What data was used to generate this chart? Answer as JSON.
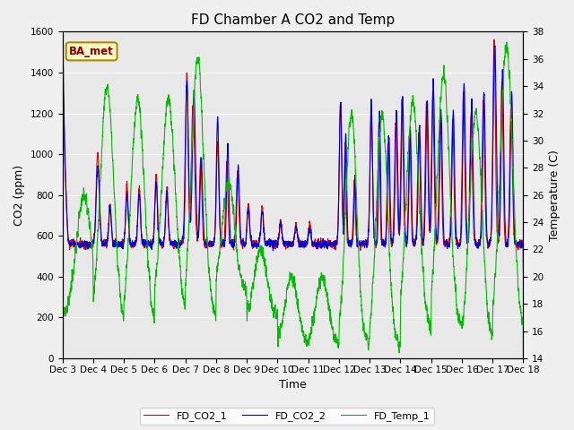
{
  "title": "FD Chamber A CO2 and Temp",
  "xlabel": "Time",
  "ylabel_left": "CO2 (ppm)",
  "ylabel_right": "Temperature (°C)",
  "ylabel_right_label": "Temperature (C)",
  "annotation_text": "BA_met",
  "legend_labels": [
    "FD_CO2_1",
    "FD_CO2_2",
    "FD_Temp_1"
  ],
  "co2_color1": "#dd0000",
  "co2_color2": "#0000dd",
  "temp_color": "#00bb00",
  "ylim_left": [
    0,
    1600
  ],
  "ylim_right": [
    14,
    38
  ],
  "yticks_left": [
    0,
    200,
    400,
    600,
    800,
    1000,
    1200,
    1400,
    1600
  ],
  "yticks_right": [
    14,
    16,
    18,
    20,
    22,
    24,
    26,
    28,
    30,
    32,
    34,
    36,
    38
  ],
  "xtick_labels": [
    "Dec 3",
    "Dec 4",
    "Dec 5",
    "Dec 6",
    "Dec 7",
    "Dec 8",
    "Dec 9",
    "Dec 10",
    "Dec 11",
    "Dec 12",
    "Dec 13",
    "Dec 14",
    "Dec 15",
    "Dec 16",
    "Dec 17",
    "Dec 18"
  ],
  "plot_bg_color": "#e8e8e8",
  "fig_bg_color": "#f0f0f0",
  "grid_color": "#ffffff",
  "linewidth": 0.8,
  "title_fontsize": 11,
  "axis_fontsize": 9,
  "tick_fontsize": 7.5,
  "legend_fontsize": 8
}
